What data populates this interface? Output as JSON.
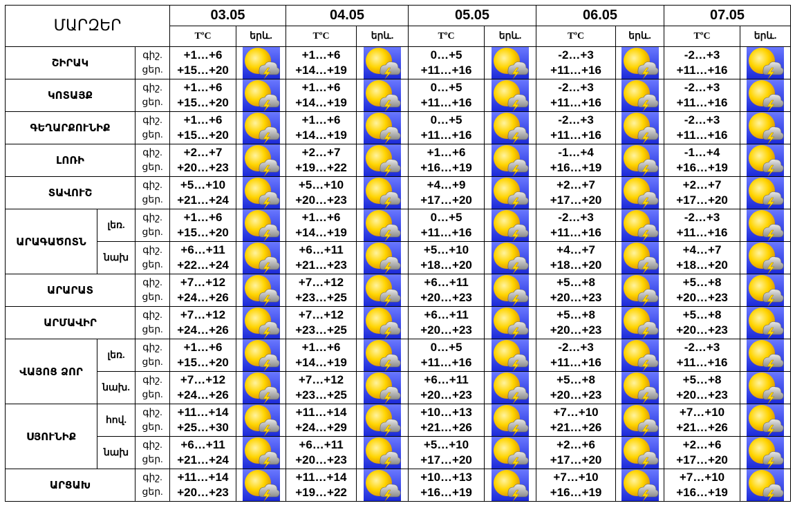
{
  "header": {
    "title": "ՄԱՐԶԵՐ",
    "dates": [
      "03.05",
      "04.05",
      "05.05",
      "06.05",
      "07.05"
    ],
    "temp_label": "TºC",
    "icon_label": "երև."
  },
  "night_label": "գիշ.",
  "day_label": "ցեր.",
  "regions": [
    {
      "name": "ՇԻՐԱԿ",
      "zones": [
        {
          "temps": [
            [
              "+1…+6",
              "+15…+20"
            ],
            [
              "+1…+6",
              "+14…+19"
            ],
            [
              "0…+5",
              "+11…+16"
            ],
            [
              "-2…+3",
              "+11…+16"
            ],
            [
              "-2…+3",
              "+11…+16"
            ]
          ]
        }
      ]
    },
    {
      "name": "ԿՈՏԱՅՔ",
      "zones": [
        {
          "temps": [
            [
              "+1…+6",
              "+15…+20"
            ],
            [
              "+1…+6",
              "+14…+19"
            ],
            [
              "0…+5",
              "+11…+16"
            ],
            [
              "-2…+3",
              "+11…+16"
            ],
            [
              "-2…+3",
              "+11…+16"
            ]
          ]
        }
      ]
    },
    {
      "name": "ԳԵՂԱՐՔՈՒՆԻՔ",
      "zones": [
        {
          "temps": [
            [
              "+1…+6",
              "+15…+20"
            ],
            [
              "+1…+6",
              "+14…+19"
            ],
            [
              "0…+5",
              "+11…+16"
            ],
            [
              "-2…+3",
              "+11…+16"
            ],
            [
              "-2…+3",
              "+11…+16"
            ]
          ]
        }
      ]
    },
    {
      "name": "ԼՈՌԻ",
      "zones": [
        {
          "temps": [
            [
              "+2…+7",
              "+20…+23"
            ],
            [
              "+2…+7",
              "+19…+22"
            ],
            [
              "+1…+6",
              "+16…+19"
            ],
            [
              "-1…+4",
              "+16…+19"
            ],
            [
              "-1…+4",
              "+16…+19"
            ]
          ]
        }
      ]
    },
    {
      "name": "ՏԱՎՈՒՇ",
      "zones": [
        {
          "temps": [
            [
              "+5…+10",
              "+21…+24"
            ],
            [
              "+5…+10",
              "+20…+23"
            ],
            [
              "+4…+9",
              "+17…+20"
            ],
            [
              "+2…+7",
              "+17…+20"
            ],
            [
              "+2…+7",
              "+17…+20"
            ]
          ]
        }
      ]
    },
    {
      "name": "ԱՐԱԳԱԾՈՏՆ",
      "zones": [
        {
          "name": "լեռ.",
          "temps": [
            [
              "+1…+6",
              "+15…+20"
            ],
            [
              "+1…+6",
              "+14…+19"
            ],
            [
              "0…+5",
              "+11…+16"
            ],
            [
              "-2…+3",
              "+11…+16"
            ],
            [
              "-2…+3",
              "+11…+16"
            ]
          ]
        },
        {
          "name": "նախ",
          "temps": [
            [
              "+6…+11",
              "+22…+24"
            ],
            [
              "+6…+11",
              "+21…+23"
            ],
            [
              "+5…+10",
              "+18…+20"
            ],
            [
              "+4…+7",
              "+18…+20"
            ],
            [
              "+4…+7",
              "+18…+20"
            ]
          ]
        }
      ]
    },
    {
      "name": "ԱՐԱՐԱՏ",
      "zones": [
        {
          "temps": [
            [
              "+7…+12",
              "+24…+26"
            ],
            [
              "+7…+12",
              "+23…+25"
            ],
            [
              "+6…+11",
              "+20…+23"
            ],
            [
              "+5…+8",
              "+20…+23"
            ],
            [
              "+5…+8",
              "+20…+23"
            ]
          ]
        }
      ]
    },
    {
      "name": "ԱՐՄԱՎԻՐ",
      "zones": [
        {
          "temps": [
            [
              "+7…+12",
              "+24…+26"
            ],
            [
              "+7…+12",
              "+23…+25"
            ],
            [
              "+6…+11",
              "+20…+23"
            ],
            [
              "+5…+8",
              "+20…+23"
            ],
            [
              "+5…+8",
              "+20…+23"
            ]
          ]
        }
      ]
    },
    {
      "name": "ՎԱՅՈՑ ՁՈՐ",
      "zones": [
        {
          "name": "լեռ.",
          "temps": [
            [
              "+1…+6",
              "+15…+20"
            ],
            [
              "+1…+6",
              "+14…+19"
            ],
            [
              "0…+5",
              "+11…+16"
            ],
            [
              "-2…+3",
              "+11…+16"
            ],
            [
              "-2…+3",
              "+11…+16"
            ]
          ]
        },
        {
          "name": "նախ.",
          "temps": [
            [
              "+7…+12",
              "+24…+26"
            ],
            [
              "+7…+12",
              "+23…+25"
            ],
            [
              "+6…+11",
              "+20…+23"
            ],
            [
              "+5…+8",
              "+20…+23"
            ],
            [
              "+5…+8",
              "+20…+23"
            ]
          ]
        }
      ]
    },
    {
      "name": "ՍՅՈՒՆԻՔ",
      "zones": [
        {
          "name": "հով.",
          "temps": [
            [
              "+11…+14",
              "+25…+30"
            ],
            [
              "+11…+14",
              "+24…+29"
            ],
            [
              "+10…+13",
              "+21…+26"
            ],
            [
              "+7…+10",
              "+21…+26"
            ],
            [
              "+7…+10",
              "+21…+26"
            ]
          ]
        },
        {
          "name": "նախ",
          "temps": [
            [
              "+6…+11",
              "+21…+24"
            ],
            [
              "+6…+11",
              "+20…+23"
            ],
            [
              "+5…+10",
              "+17…+20"
            ],
            [
              "+2…+6",
              "+17…+20"
            ],
            [
              "+2…+6",
              "+17…+20"
            ]
          ]
        }
      ]
    },
    {
      "name": "ԱՐՑԱԽ",
      "zones": [
        {
          "temps": [
            [
              "+11…+14",
              "+20…+23"
            ],
            [
              "+11…+14",
              "+19…+22"
            ],
            [
              "+10…+13",
              "+16…+19"
            ],
            [
              "+7…+10",
              "+16…+19"
            ],
            [
              "+7…+10",
              "+16…+19"
            ]
          ]
        }
      ]
    }
  ]
}
